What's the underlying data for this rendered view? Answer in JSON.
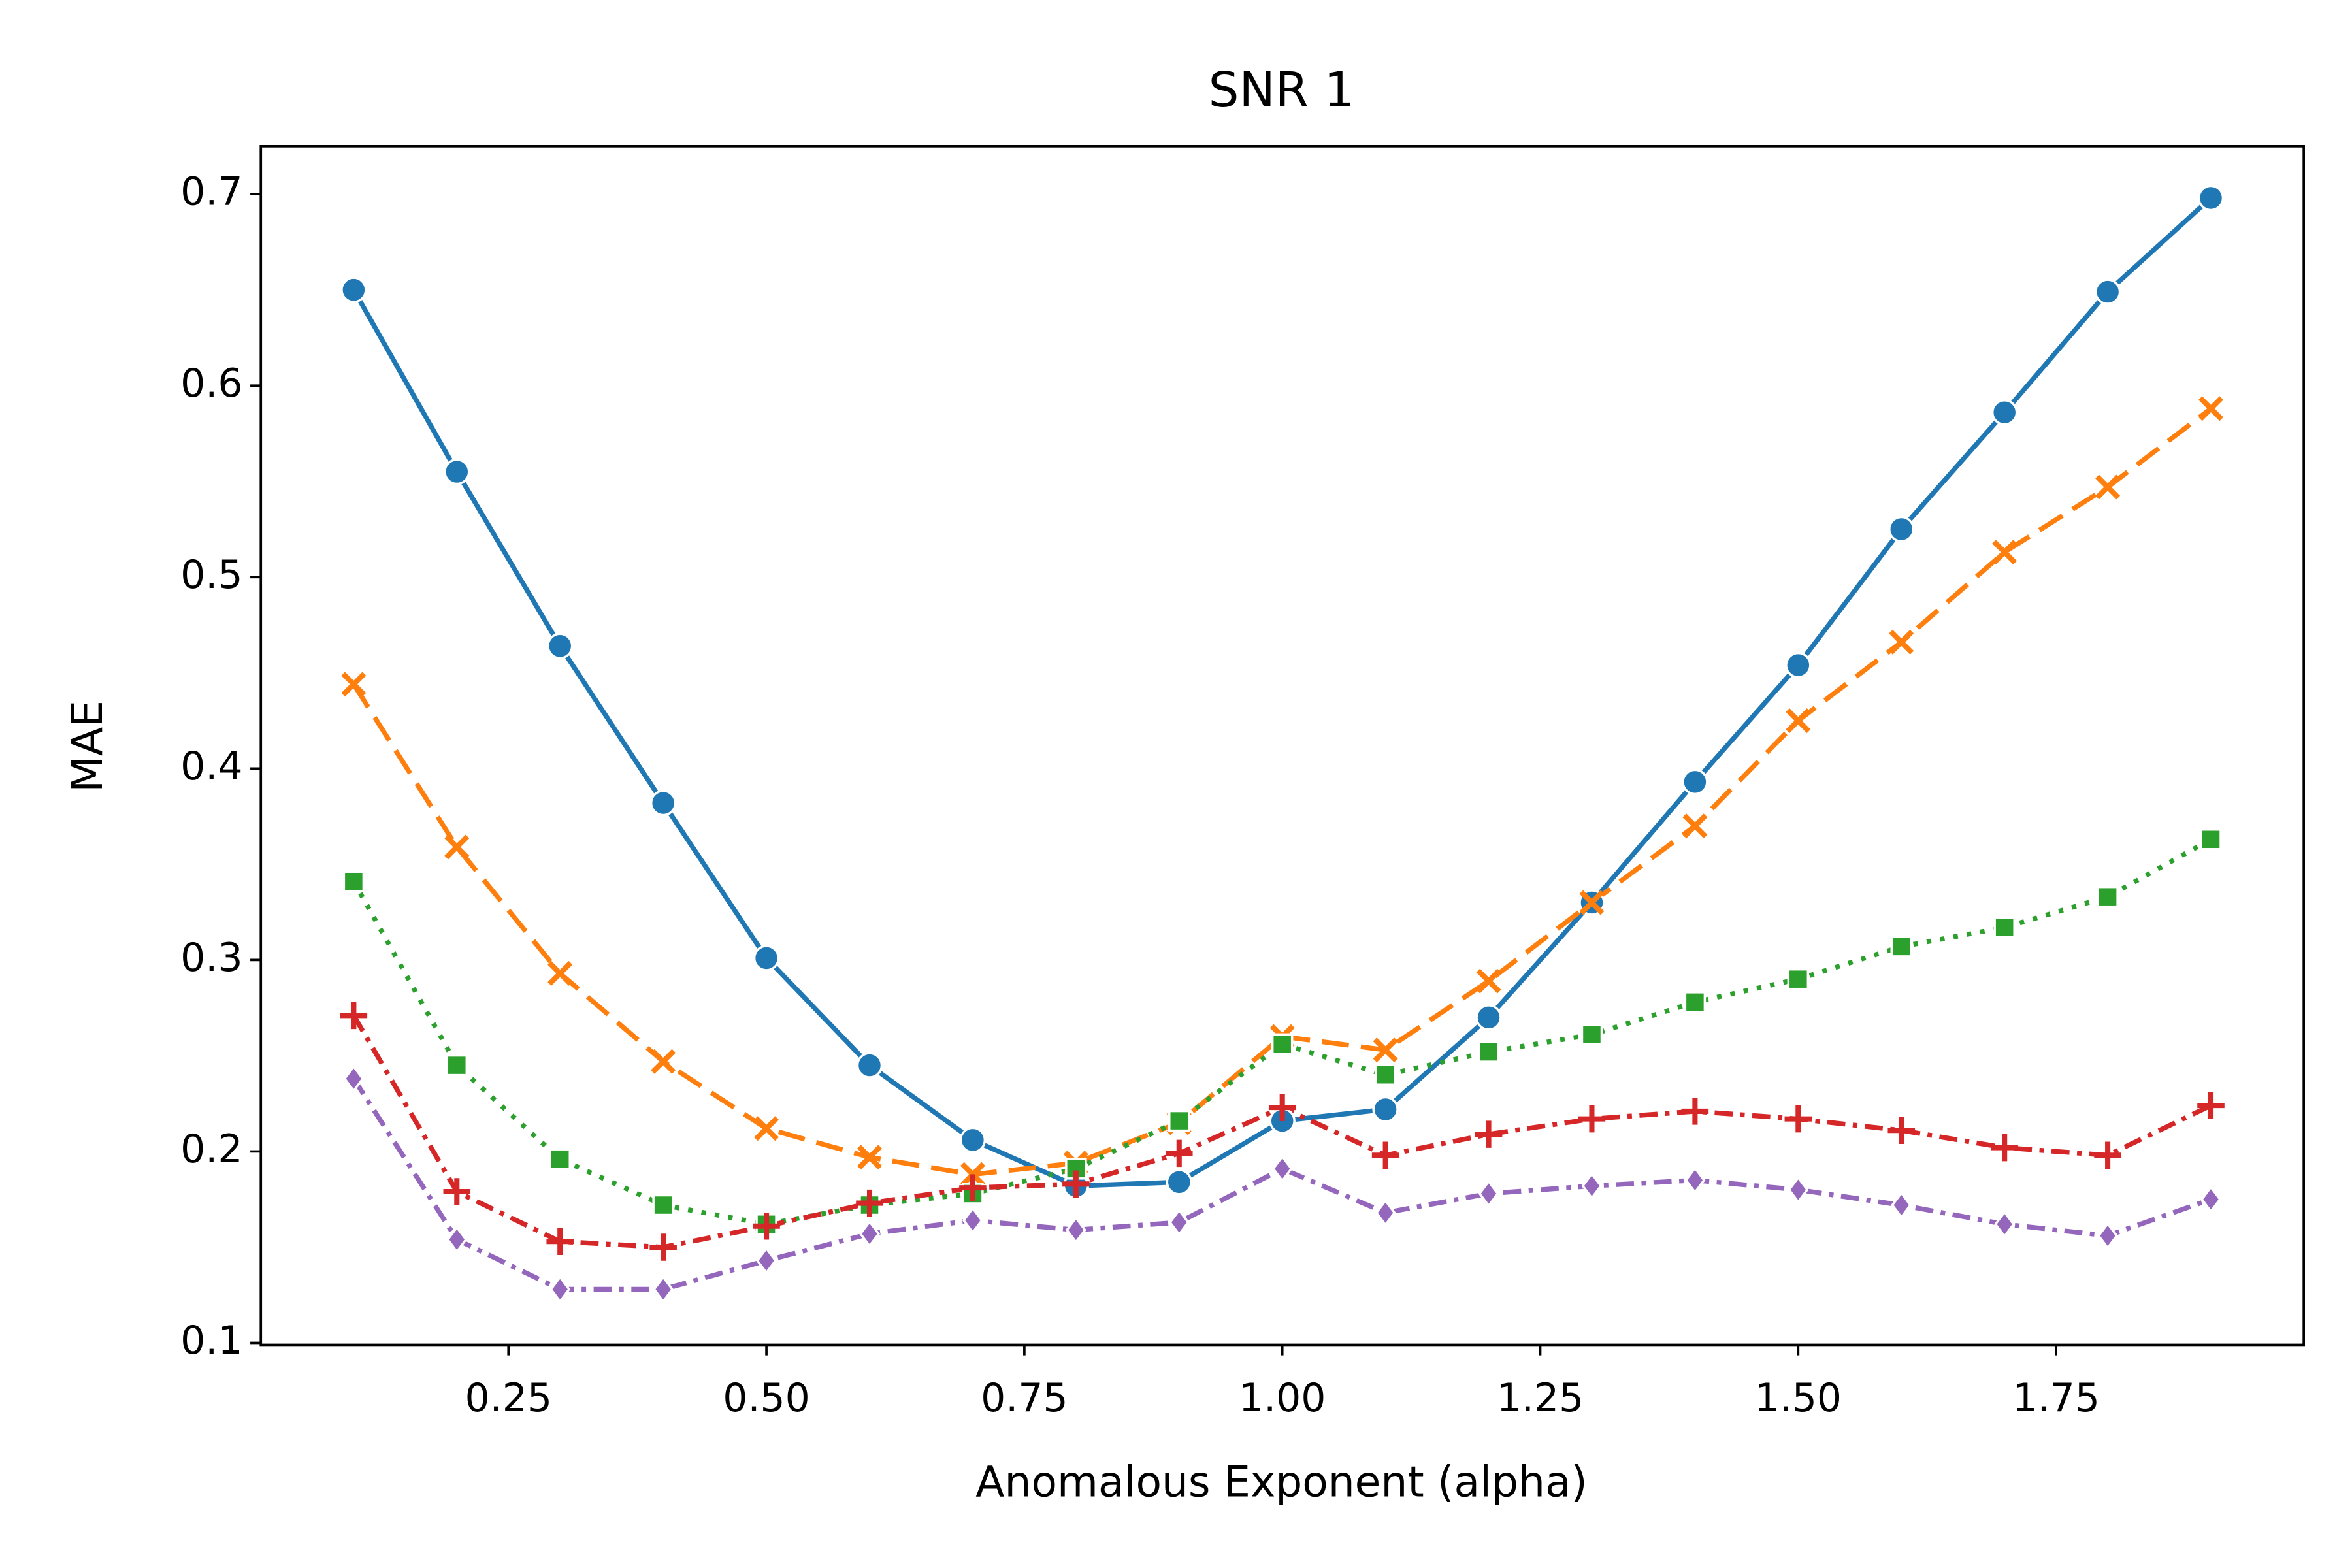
{
  "chart_data": {
    "type": "line",
    "title": "SNR 1",
    "xlabel": "Anomalous Exponent (alpha)",
    "ylabel": "MAE",
    "x": [
      0.1,
      0.2,
      0.3,
      0.4,
      0.5,
      0.6,
      0.7,
      0.8,
      0.9,
      1.0,
      1.1,
      1.2,
      1.3,
      1.4,
      1.5,
      1.6,
      1.7,
      1.8,
      1.9
    ],
    "series": [
      {
        "color": "#1f77b4",
        "marker": "circle",
        "linestyle": "solid",
        "values": [
          0.65,
          0.555,
          0.464,
          0.382,
          0.301,
          0.245,
          0.206,
          0.182,
          0.184,
          0.216,
          0.222,
          0.27,
          0.33,
          0.393,
          0.454,
          0.525,
          0.586,
          0.649,
          0.698
        ]
      },
      {
        "color": "#ff7f0e",
        "marker": "x",
        "linestyle": "dashed",
        "values": [
          0.444,
          0.359,
          0.293,
          0.247,
          0.212,
          0.197,
          0.188,
          0.194,
          0.215,
          0.26,
          0.253,
          0.289,
          0.33,
          0.37,
          0.425,
          0.466,
          0.513,
          0.547,
          0.588
        ]
      },
      {
        "color": "#2ca02c",
        "marker": "square",
        "linestyle": "dotted",
        "values": [
          0.341,
          0.245,
          0.196,
          0.172,
          0.162,
          0.172,
          0.178,
          0.191,
          0.216,
          0.256,
          0.24,
          0.252,
          0.261,
          0.278,
          0.29,
          0.307,
          0.317,
          0.333,
          0.363
        ]
      },
      {
        "color": "#d62728",
        "marker": "plus",
        "linestyle": "dashdot",
        "values": [
          0.271,
          0.179,
          0.153,
          0.15,
          0.161,
          0.173,
          0.181,
          0.183,
          0.199,
          0.223,
          0.198,
          0.209,
          0.217,
          0.221,
          0.217,
          0.211,
          0.202,
          0.198,
          0.224
        ]
      },
      {
        "color": "#9467bd",
        "marker": "diamond",
        "linestyle": "dashdot",
        "values": [
          0.238,
          0.154,
          0.128,
          0.128,
          0.143,
          0.157,
          0.164,
          0.159,
          0.163,
          0.191,
          0.168,
          0.178,
          0.182,
          0.185,
          0.18,
          0.172,
          0.162,
          0.156,
          0.175
        ]
      }
    ],
    "xlim": [
      0.01,
      1.99
    ],
    "ylim": [
      0.099,
      0.725
    ],
    "xticks": [
      0.25,
      {
        "value": 0.5,
        "label": "0.50"
      },
      0.75,
      {
        "value": 1.0,
        "label": "1.00"
      },
      1.25,
      {
        "value": 1.5,
        "label": "1.50"
      },
      1.75
    ],
    "yticks": [
      0.1,
      0.2,
      0.3,
      0.4,
      0.5,
      0.6,
      0.7
    ],
    "grid": false
  }
}
